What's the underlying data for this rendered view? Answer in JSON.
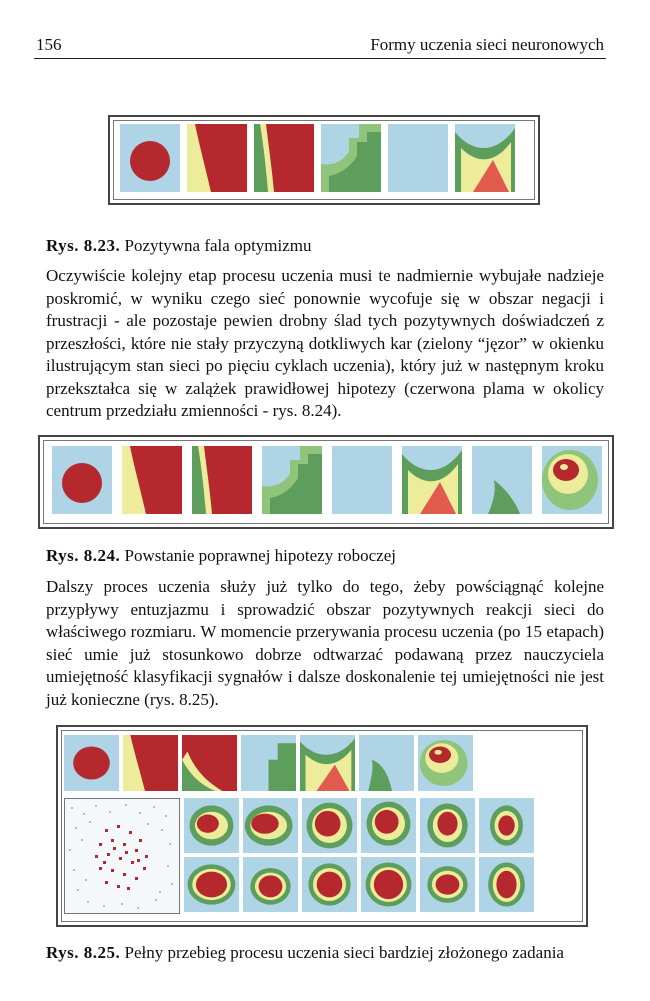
{
  "header": {
    "page_number": "156",
    "running_title": "Formy uczenia sieci neuronowych"
  },
  "fig_823": {
    "label": "Rys. 8.23.",
    "caption": "Pozytywna fala optymizmu"
  },
  "para1": "Oczywiście kolejny etap procesu uczenia musi te nadmiernie wybujałe nadzieje poskromić, w wyniku czego sieć ponownie wycofuje się w obszar negacji i frustracji - ale pozostaje pewien drobny ślad tych pozytywnych doświadczeń z przeszłości, które nie stały przyczyną dotkliwych kar (zielony “jęzor” w okienku ilustrującym stan sieci po pięciu cyklach uczenia), który już w następnym kroku przekształca się w zalążek prawidłowej hipotezy (czerwona plama w okolicy centrum przedziału zmienności - rys. 8.24).",
  "fig_824": {
    "label": "Rys. 8.24.",
    "caption": "Powstanie poprawnej hipotezy roboczej"
  },
  "para2": "Dalszy proces uczenia służy już tylko do tego, żeby powściągnąć kolejne przypływy entuzjazmu i sprowadzić obszar pozytywnych reakcji sieci do właściwego rozmiaru. W momencie przerywania procesu uczenia (po 15 etapach) sieć umie już stosunkowo dobrze odtwarzać podawaną przez nauczyciela umiejętność klasyfikacji sygnałów i dalsze doskonalenie tej umiejętności nie jest już konieczne (rys. 8.25).",
  "fig_825": {
    "label": "Rys. 8.25.",
    "caption": "Pełny przebieg procesu uczenia sieci bardziej złożonego zadania"
  },
  "colors": {
    "red": "#b5282e",
    "yellow": "#ecec9a",
    "green": "#5e9e5c",
    "lightgreen": "#8fc47a",
    "blue": "#aed4e6"
  }
}
